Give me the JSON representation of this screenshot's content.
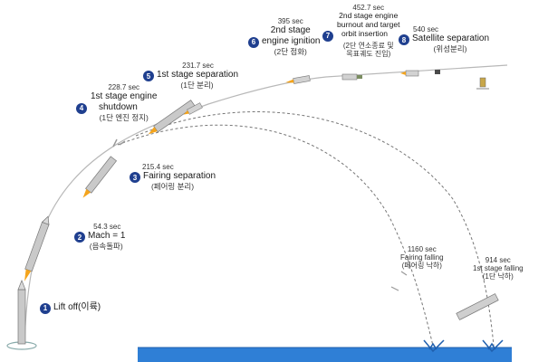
{
  "events": [
    {
      "num": "1",
      "name": "Lift off(이륙)"
    },
    {
      "num": "2",
      "time": "54.3 sec",
      "name": "Mach = 1",
      "kor": "(음속돌파)"
    },
    {
      "num": "3",
      "time": "215.4 sec",
      "name": "Fairing separation",
      "kor": "(페어링 분리)"
    },
    {
      "num": "4",
      "time": "228.7 sec",
      "name1": "1st stage engine",
      "name2": "shutdown",
      "kor": "(1단 엔진 정지)"
    },
    {
      "num": "5",
      "time": "231.7 sec",
      "name": "1st stage separation",
      "kor": "(1단 분리)"
    },
    {
      "num": "6",
      "time": "395 sec",
      "name1": "2nd stage",
      "name2": "engine ignition",
      "kor": "(2단 점화)"
    },
    {
      "num": "7",
      "time": "452.7 sec",
      "name1": "2nd stage engine",
      "name2": "burnout and target",
      "name3": "orbit insertion",
      "kor1": "(2단 연소종료 및",
      "kor2": "목표궤도 진입)"
    },
    {
      "num": "8",
      "time": "540 sec",
      "name": "Satellite separation",
      "kor": "(위성분리)"
    }
  ],
  "falls": [
    {
      "time": "1160 sec",
      "name": "Fairing falling",
      "kor": "(페어링 낙하)"
    },
    {
      "time": "914 sec",
      "name": "1st stage falling",
      "kor": "(1단 낙하)"
    }
  ],
  "colors": {
    "badge": "#1f3f8f",
    "ocean": "#2f7fd6",
    "trajectory": "#9a9a9a",
    "flame": "#f4a41c"
  }
}
